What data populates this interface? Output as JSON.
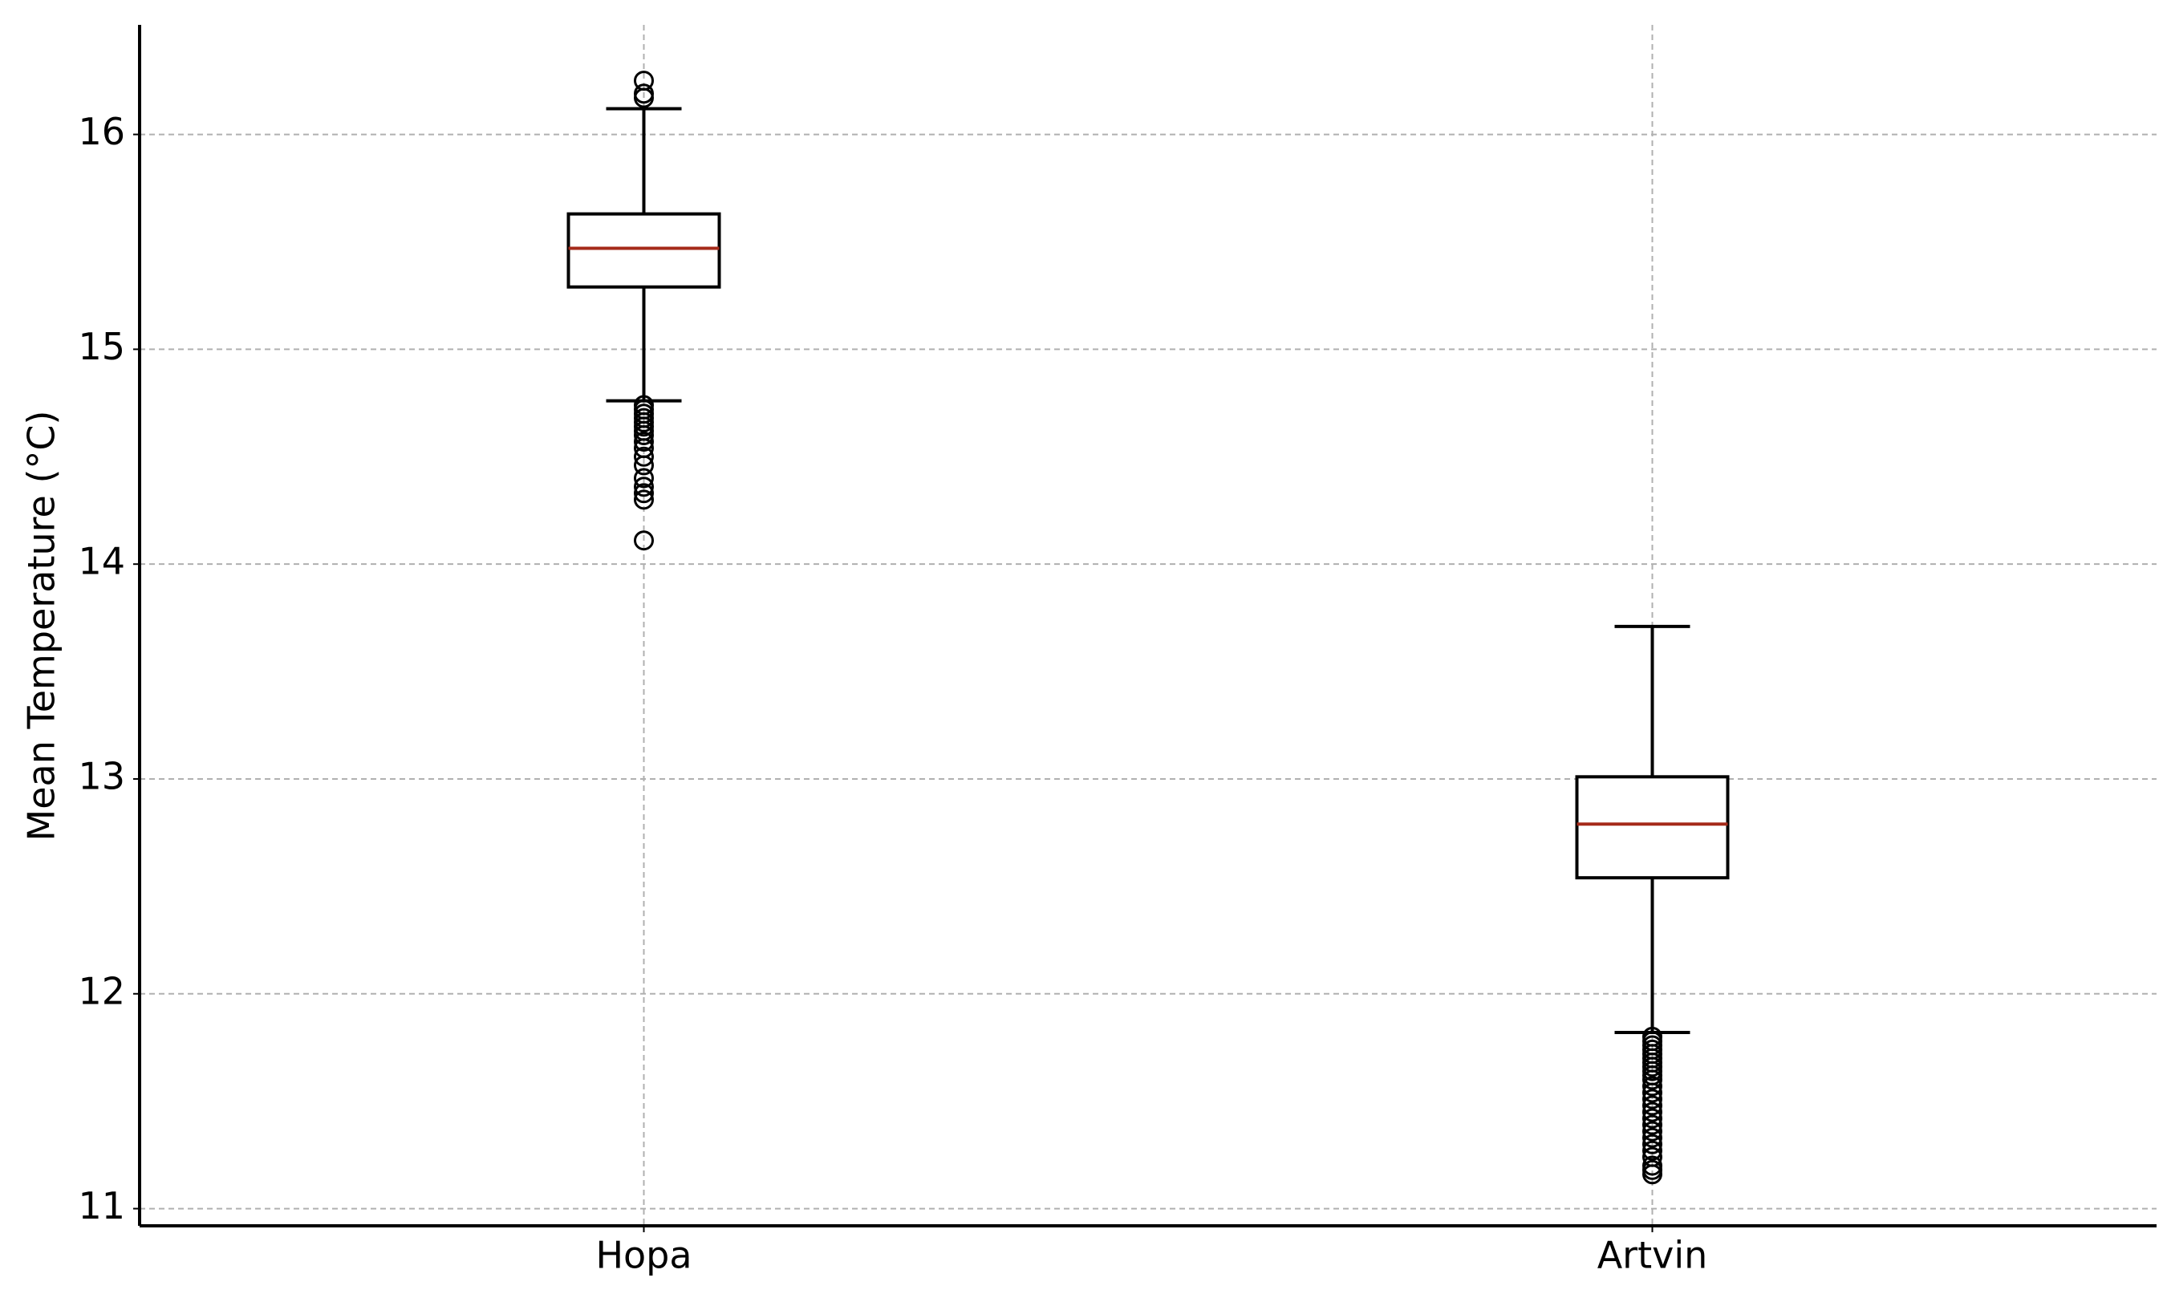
{
  "chart_data": {
    "type": "box",
    "y_label": "Mean Temperature (°C)",
    "categories": [
      "Hopa",
      "Artvin"
    ],
    "boxes": [
      {
        "whislo": 14.76,
        "q1": 15.29,
        "med": 15.47,
        "q3": 15.63,
        "whishi": 16.12,
        "fliers": [
          16.25,
          16.19,
          16.17,
          14.74,
          14.72,
          14.7,
          14.68,
          14.66,
          14.64,
          14.62,
          14.6,
          14.57,
          14.54,
          14.5,
          14.46,
          14.4,
          14.36,
          14.33,
          14.3,
          14.11
        ]
      },
      {
        "whislo": 11.82,
        "q1": 12.54,
        "med": 12.79,
        "q3": 13.01,
        "whishi": 13.71,
        "fliers": [
          11.8,
          11.78,
          11.76,
          11.74,
          11.72,
          11.7,
          11.68,
          11.66,
          11.64,
          11.62,
          11.6,
          11.57,
          11.54,
          11.51,
          11.48,
          11.45,
          11.42,
          11.39,
          11.36,
          11.33,
          11.3,
          11.27,
          11.24,
          11.2,
          11.18,
          11.16
        ]
      }
    ],
    "ylim": [
      10.92,
      16.51
    ],
    "yticks": [
      11,
      12,
      13,
      14,
      15,
      16
    ],
    "grid": true,
    "box_color": "#000000",
    "median_color": "#a52a1a"
  }
}
